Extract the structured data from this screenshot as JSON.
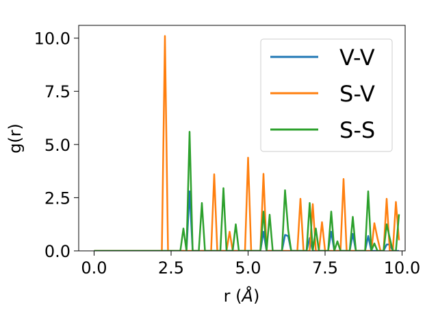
{
  "chart_data": {
    "type": "line",
    "xlabel_prefix": "r (",
    "xlabel_unit": "Å",
    "xlabel_suffix": ")",
    "ylabel": "g(r)",
    "xlim": [
      -0.5,
      10.1
    ],
    "ylim": [
      0,
      10.6
    ],
    "xticks": [
      0.0,
      2.5,
      5.0,
      7.5,
      10.0
    ],
    "xtick_labels": [
      "0.0",
      "2.5",
      "5.0",
      "7.5",
      "10.0"
    ],
    "yticks": [
      0.0,
      2.5,
      5.0,
      7.5,
      10.0
    ],
    "ytick_labels": [
      "0.0",
      "2.5",
      "5.0",
      "7.5",
      "10.0"
    ],
    "grid": false,
    "legend_position": "upper-right",
    "series": [
      {
        "name": "V-V",
        "color": "#1f77b4",
        "points": [
          [
            0.0,
            0
          ],
          [
            2.8,
            0
          ],
          [
            2.9,
            0
          ],
          [
            3.0,
            0
          ],
          [
            3.1,
            2.8
          ],
          [
            3.2,
            0
          ],
          [
            3.3,
            0
          ],
          [
            5.4,
            0
          ],
          [
            5.5,
            0.9
          ],
          [
            5.6,
            0
          ],
          [
            6.1,
            0
          ],
          [
            6.2,
            0.75
          ],
          [
            6.3,
            0.7
          ],
          [
            6.4,
            0
          ],
          [
            6.9,
            0
          ],
          [
            7.0,
            0.6
          ],
          [
            7.1,
            0
          ],
          [
            7.6,
            0
          ],
          [
            7.7,
            0.9
          ],
          [
            7.8,
            0
          ],
          [
            8.3,
            0
          ],
          [
            8.4,
            0.8
          ],
          [
            8.5,
            0
          ],
          [
            8.8,
            0
          ],
          [
            8.9,
            0.7
          ],
          [
            9.0,
            0
          ],
          [
            9.4,
            0
          ],
          [
            9.5,
            0.3
          ],
          [
            9.6,
            0.3
          ],
          [
            9.7,
            0
          ],
          [
            9.9,
            0
          ]
        ]
      },
      {
        "name": "S-V",
        "color": "#ff7f0e",
        "points": [
          [
            0.0,
            0
          ],
          [
            2.2,
            0
          ],
          [
            2.3,
            10.1
          ],
          [
            2.4,
            0
          ],
          [
            3.8,
            0
          ],
          [
            3.9,
            3.6
          ],
          [
            4.0,
            0
          ],
          [
            4.3,
            0
          ],
          [
            4.4,
            0.9
          ],
          [
            4.5,
            0
          ],
          [
            4.9,
            0
          ],
          [
            5.0,
            4.38
          ],
          [
            5.1,
            0
          ],
          [
            5.4,
            0
          ],
          [
            5.5,
            3.62
          ],
          [
            5.6,
            0
          ],
          [
            6.6,
            0
          ],
          [
            6.7,
            2.45
          ],
          [
            6.8,
            0
          ],
          [
            7.0,
            0
          ],
          [
            7.1,
            2.2
          ],
          [
            7.2,
            0
          ],
          [
            7.3,
            0
          ],
          [
            7.4,
            1.35
          ],
          [
            7.5,
            0
          ],
          [
            8.0,
            0
          ],
          [
            8.1,
            3.38
          ],
          [
            8.2,
            0
          ],
          [
            9.0,
            0
          ],
          [
            9.1,
            1.3
          ],
          [
            9.2,
            0.6
          ],
          [
            9.3,
            0
          ],
          [
            9.4,
            0
          ],
          [
            9.5,
            2.45
          ],
          [
            9.6,
            0
          ],
          [
            9.7,
            0
          ],
          [
            9.8,
            2.3
          ],
          [
            9.9,
            0.5
          ]
        ]
      },
      {
        "name": "S-S",
        "color": "#2ca02c",
        "points": [
          [
            0.0,
            0
          ],
          [
            2.8,
            0
          ],
          [
            2.9,
            1.05
          ],
          [
            3.0,
            0
          ],
          [
            3.1,
            5.6
          ],
          [
            3.2,
            0
          ],
          [
            3.4,
            0
          ],
          [
            3.5,
            2.25
          ],
          [
            3.6,
            0
          ],
          [
            4.1,
            0
          ],
          [
            4.2,
            2.95
          ],
          [
            4.3,
            0
          ],
          [
            4.5,
            0
          ],
          [
            4.6,
            1.25
          ],
          [
            4.7,
            0
          ],
          [
            5.4,
            0
          ],
          [
            5.5,
            1.85
          ],
          [
            5.6,
            0
          ],
          [
            5.7,
            1.7
          ],
          [
            5.8,
            0
          ],
          [
            6.1,
            0
          ],
          [
            6.2,
            2.85
          ],
          [
            6.3,
            1.0
          ],
          [
            6.4,
            0
          ],
          [
            6.9,
            0
          ],
          [
            7.0,
            2.25
          ],
          [
            7.1,
            0
          ],
          [
            7.2,
            1.05
          ],
          [
            7.3,
            0
          ],
          [
            7.6,
            0
          ],
          [
            7.7,
            1.85
          ],
          [
            7.8,
            0
          ],
          [
            7.9,
            0.45
          ],
          [
            8.0,
            0
          ],
          [
            8.3,
            0
          ],
          [
            8.4,
            1.6
          ],
          [
            8.5,
            0
          ],
          [
            8.8,
            0
          ],
          [
            8.9,
            2.8
          ],
          [
            9.0,
            0
          ],
          [
            9.1,
            0.35
          ],
          [
            9.2,
            0
          ],
          [
            9.4,
            0
          ],
          [
            9.5,
            1.25
          ],
          [
            9.6,
            0.6
          ],
          [
            9.7,
            0
          ],
          [
            9.8,
            0
          ],
          [
            9.9,
            1.72
          ]
        ]
      }
    ]
  }
}
